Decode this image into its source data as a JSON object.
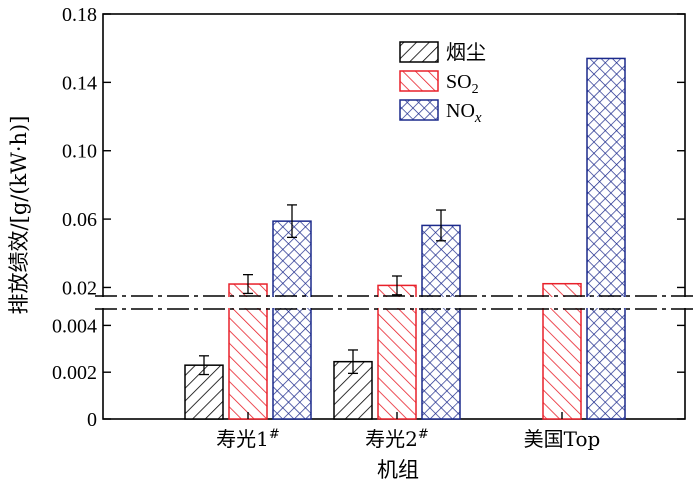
{
  "chart_data": {
    "type": "bar",
    "xlabel": "机组",
    "ylabel": "排放绩效/[g/(kW·h)]",
    "categories": [
      "寿光1#",
      "寿光2#",
      "美国Top"
    ],
    "category_parts": [
      {
        "base": "寿光1",
        "sup": "#"
      },
      {
        "base": "寿光2",
        "sup": "#"
      },
      {
        "base": "美国Top",
        "sup": ""
      }
    ],
    "broken_axis": true,
    "lower_range": [
      0,
      0.005
    ],
    "upper_range": [
      0.015,
      0.18
    ],
    "lower_ticks": [
      "0",
      "0.002",
      "0.004"
    ],
    "upper_ticks": [
      "0.02",
      "0.06",
      "0.10",
      "0.14",
      "0.18"
    ],
    "series": [
      {
        "name": "烟尘",
        "name_main": "烟尘",
        "name_sub": "",
        "name_italic_sub": "",
        "color": "#000000",
        "pattern": "diag-fwd",
        "values": [
          0.0023,
          0.00245,
          null
        ],
        "errors": [
          0.0004,
          0.0005,
          null
        ]
      },
      {
        "name": "SO2",
        "name_main": "SO",
        "name_sub": "2",
        "name_italic_sub": "",
        "color": "#e8202a",
        "pattern": "diag-back",
        "values": [
          0.022,
          0.0212,
          0.0222
        ],
        "errors": [
          0.0055,
          0.0055,
          null
        ]
      },
      {
        "name": "NOx",
        "name_main": "NO",
        "name_sub": "",
        "name_italic_sub": "x",
        "color": "#1c2a8c",
        "pattern": "cross",
        "values": [
          0.0588,
          0.0563,
          0.154
        ],
        "errors": [
          0.0095,
          0.009,
          null
        ]
      }
    ]
  }
}
